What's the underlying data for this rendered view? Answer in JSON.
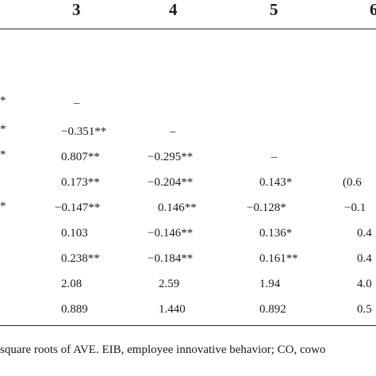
{
  "table": {
    "headers": [
      "3",
      "4",
      "5",
      "6"
    ],
    "rows": [
      {
        "c2": "*",
        "c3": "–",
        "c4": "",
        "c5": "",
        "c6": ""
      },
      {
        "c2": "*",
        "c3": "−0.351**",
        "c4": "–",
        "c5": "",
        "c6": ""
      },
      {
        "c2": "*",
        "c3": "0.807**",
        "c4": "−0.295**",
        "c5": "–",
        "c6": ""
      },
      {
        "c2": "",
        "c3": "0.173**",
        "c4": "−0.204**",
        "c5": "0.143*",
        "c6": "(0.6"
      },
      {
        "c2": "*",
        "c3": "−0.147**",
        "c4": "0.146**",
        "c5": "−0.128*",
        "c6": "−0.1"
      },
      {
        "c2": "",
        "c3": "0.103",
        "c4": "−0.146**",
        "c5": "0.136*",
        "c6": "0.4"
      },
      {
        "c2": "",
        "c3": "0.238**",
        "c4": "−0.184**",
        "c5": "0.161**",
        "c6": "0.4"
      },
      {
        "c2": "",
        "c3": "2.08",
        "c4": "2.59",
        "c5": "1.94",
        "c6": "4.0"
      },
      {
        "c2": "",
        "c3": "0.889",
        "c4": "1.440",
        "c5": "0.892",
        "c6": "0.5"
      }
    ]
  },
  "footnote": "square roots of AVE. EIB, employee innovative behavior; CO, cowo"
}
